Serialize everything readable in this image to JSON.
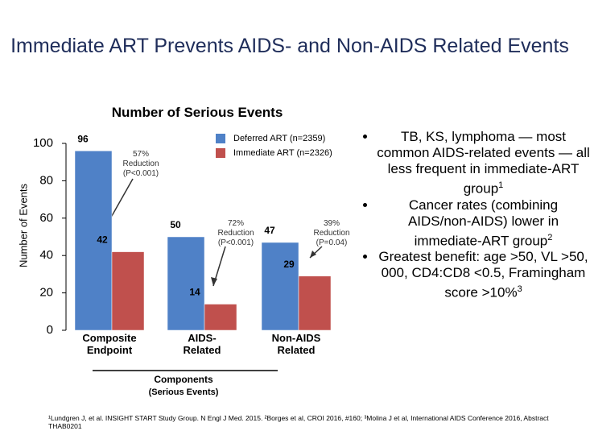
{
  "title": "Immediate ART Prevents AIDS- and Non-AIDS Related Events",
  "chart_data": {
    "type": "bar",
    "title": "Number of Serious Events",
    "y_label": "Number of Events",
    "x_label": "Components",
    "x_sublabel": "(Serious Events)",
    "categories": [
      "Composite\nEndpoint",
      "AIDS-\nRelated",
      "Non-AIDS\nRelated"
    ],
    "series": [
      {
        "name": "Deferred ART (n=2359)",
        "color": "#4f81c7",
        "values": [
          96,
          50,
          47
        ]
      },
      {
        "name": "Immediate ART (n=2326)",
        "color": "#c0504d",
        "values": [
          42,
          14,
          29
        ]
      }
    ],
    "annotations": [
      "57%\nReduction\n(P<0.001)",
      "72%\nReduction\n(P<0.001)",
      "39%\nReduction\n(P=0.04)"
    ],
    "ylim": [
      0,
      100
    ],
    "yticks": [
      0,
      20,
      40,
      60,
      80,
      100
    ]
  },
  "bullets": [
    {
      "text": "TB, KS, lymphoma — most common AIDS-related events — all less frequent in immediate-ART group",
      "sup": "1"
    },
    {
      "text": "Cancer rates (combining AIDS/non-AIDS) lower in immediate-ART group",
      "sup": "2"
    },
    {
      "text": "Greatest benefit: age >50, VL >50, 000, CD4:CD8 <0.5, Framingham score >10%",
      "sup": "3"
    }
  ],
  "footnote": "¹Lundgren J, et al. INSIGHT START Study Group. N Engl J Med. 2015. ²Borges et al, CROI 2016, #160; ³Molina J et al, International AIDS Conference 2016, Abstract THAB0201"
}
